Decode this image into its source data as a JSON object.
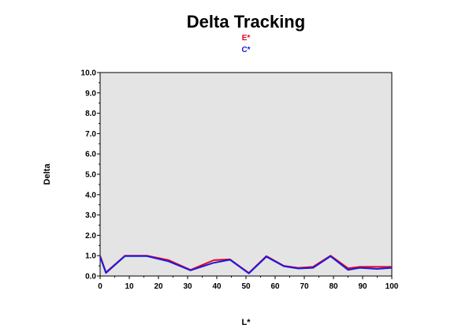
{
  "chart_data": {
    "type": "line",
    "title": "Delta Tracking",
    "xlabel": "L*",
    "ylabel": "Delta",
    "xlim": [
      0,
      100
    ],
    "ylim": [
      0.0,
      10.0
    ],
    "xticks": [
      "0",
      "10",
      "20",
      "30",
      "40",
      "50",
      "60",
      "70",
      "80",
      "90",
      "100"
    ],
    "yticks": [
      "0.0",
      "1.0",
      "2.0",
      "3.0",
      "4.0",
      "5.0",
      "6.0",
      "7.0",
      "8.0",
      "9.0",
      "10.0"
    ],
    "grid": false,
    "plot_background": "#e4e4e4",
    "legend_position": "top-center",
    "series": [
      {
        "name": "E*",
        "color": "#e8001c",
        "points": [
          [
            0,
            1.0
          ],
          [
            2,
            0.18
          ],
          [
            8.5,
            1.0
          ],
          [
            16,
            1.0
          ],
          [
            23.5,
            0.78
          ],
          [
            31,
            0.3
          ],
          [
            39,
            0.78
          ],
          [
            44.5,
            0.82
          ],
          [
            51,
            0.15
          ],
          [
            57,
            0.98
          ],
          [
            63,
            0.5
          ],
          [
            68,
            0.4
          ],
          [
            73,
            0.45
          ],
          [
            79,
            1.0
          ],
          [
            85,
            0.38
          ],
          [
            89,
            0.45
          ],
          [
            95,
            0.45
          ],
          [
            100,
            0.45
          ]
        ]
      },
      {
        "name": "C*",
        "color": "#1a1ae6",
        "points": [
          [
            0,
            0.95
          ],
          [
            2,
            0.15
          ],
          [
            8.5,
            0.98
          ],
          [
            16,
            0.98
          ],
          [
            23.5,
            0.72
          ],
          [
            31,
            0.28
          ],
          [
            39,
            0.65
          ],
          [
            44.5,
            0.8
          ],
          [
            51,
            0.13
          ],
          [
            57,
            0.95
          ],
          [
            63,
            0.48
          ],
          [
            68,
            0.37
          ],
          [
            73,
            0.4
          ],
          [
            79,
            0.97
          ],
          [
            85,
            0.3
          ],
          [
            89,
            0.4
          ],
          [
            95,
            0.35
          ],
          [
            100,
            0.4
          ]
        ]
      }
    ]
  }
}
